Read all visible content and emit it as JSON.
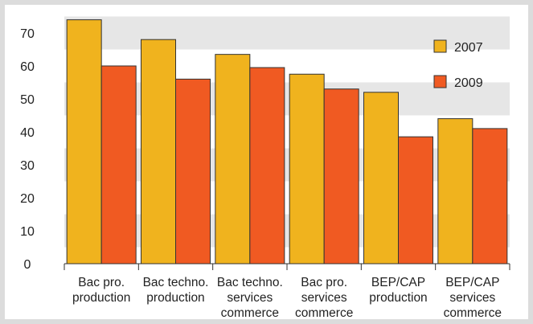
{
  "chart_data": {
    "type": "bar",
    "title": "",
    "xlabel": "",
    "ylabel": "",
    "ylim": [
      0,
      75
    ],
    "yticks": [
      0,
      10,
      20,
      30,
      40,
      50,
      60,
      70
    ],
    "grid": "alternating-bands",
    "legend_position": "top-right",
    "categories": [
      [
        "Bac pro.",
        "production"
      ],
      [
        "Bac techno.",
        "production"
      ],
      [
        "Bac techno.",
        "services",
        "commerce"
      ],
      [
        "Bac pro.",
        "services",
        "commerce"
      ],
      [
        "BEP/CAP",
        "production"
      ],
      [
        "BEP/CAP",
        "services",
        "commerce"
      ]
    ],
    "series": [
      {
        "name": "2007",
        "color": "#f0b31e",
        "values": [
          74,
          68,
          63.5,
          57.5,
          52,
          44
        ]
      },
      {
        "name": "2009",
        "color": "#f05a22",
        "values": [
          60,
          56,
          59.5,
          53,
          38.5,
          41
        ]
      }
    ],
    "colors": {
      "band": "#e6e6e6",
      "bar_stroke": "#333333",
      "axis": "#333333"
    }
  }
}
